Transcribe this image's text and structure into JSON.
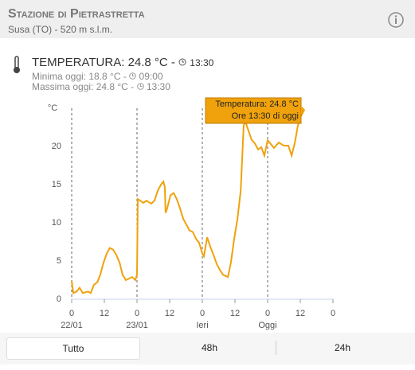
{
  "header": {
    "title": "Stazione di Pietrastretta",
    "subtitle": "Susa (TO) - 520 m s.l.m."
  },
  "reading": {
    "label": "TEMPERATURA: 24.8 °C -",
    "time": "13:30",
    "min": "Minima oggi: 18.8 °C -",
    "min_time": "09:00",
    "max": "Massima oggi: 24.8 °C -",
    "max_time": "13:30"
  },
  "chart_data": {
    "type": "line",
    "y_unit": "°C",
    "color": "#f0a20c",
    "x": [
      0,
      0.6,
      1.8,
      2.9,
      4.1,
      5.9,
      7.0,
      8.2,
      9.4,
      10.5,
      11.7,
      12.9,
      14.0,
      15.2,
      16.4,
      17.6,
      18.7,
      19.9,
      21.1,
      22.2,
      23.4,
      24.0,
      24.3,
      25.2,
      26.3,
      27.5,
      29.3,
      30.4,
      31.6,
      32.8,
      33.7,
      34.2,
      34.5,
      35.1,
      36.3,
      37.5,
      38.6,
      39.8,
      41.0,
      42.1,
      43.3,
      44.5,
      45.7,
      46.8,
      48.0,
      48.6,
      49.8,
      50.9,
      52.1,
      53.3,
      54.5,
      55.6,
      57.4,
      58.5,
      59.7,
      60.9,
      62.1,
      63.2,
      63.8,
      65.0,
      66.1,
      67.3,
      68.5,
      69.7,
      70.8,
      72.0,
      73.2,
      74.3,
      76.1,
      77.9,
      79.6,
      80.8,
      82.0,
      83.1,
      84.3,
      85.5
    ],
    "values": [
      2.4,
      0.8,
      1.0,
      1.5,
      0.8,
      1.0,
      0.8,
      1.9,
      2.2,
      3.2,
      4.8,
      6.0,
      6.7,
      6.5,
      5.8,
      4.8,
      3.2,
      2.5,
      2.7,
      2.9,
      2.5,
      3.2,
      13.1,
      12.9,
      12.6,
      12.9,
      12.5,
      12.9,
      14.2,
      15.0,
      15.4,
      14.7,
      11.3,
      11.9,
      13.6,
      13.9,
      13.1,
      11.9,
      10.5,
      9.8,
      9.0,
      8.8,
      7.9,
      7.4,
      6.0,
      5.6,
      8.1,
      6.9,
      5.8,
      4.6,
      3.8,
      3.2,
      2.9,
      4.8,
      7.9,
      10.5,
      14.2,
      22.7,
      23.3,
      22.0,
      20.9,
      20.4,
      19.6,
      19.9,
      18.8,
      20.8,
      20.3,
      19.8,
      20.5,
      20.1,
      20.1,
      18.8,
      20.5,
      22.7,
      24.0,
      24.8
    ],
    "xlim": [
      0,
      96
    ],
    "xticks": [
      0,
      12,
      {
        "value": 24,
        "label": "0"
      },
      {
        "value": 36,
        "label": "12"
      },
      {
        "value": 48,
        "label": "0"
      },
      {
        "value": 60,
        "label": "12"
      },
      {
        "value": 72,
        "label": "0"
      },
      {
        "value": 84,
        "label": "12"
      },
      {
        "value": 96,
        "label": "0"
      }
    ],
    "day_labels": [
      {
        "value": 0,
        "label": "22/01"
      },
      {
        "value": 24,
        "label": "23/01"
      },
      {
        "value": 48,
        "label": "Ieri"
      },
      {
        "value": 72,
        "label": "Oggi"
      }
    ],
    "ylim": [
      0,
      25
    ],
    "yticks": [
      0,
      5,
      10,
      15,
      20
    ],
    "tooltip": [
      "Temperatura: 24.8 °C",
      "Ore 13:30 di oggi"
    ]
  },
  "tabs": [
    "Tutto",
    "48h",
    "24h"
  ]
}
